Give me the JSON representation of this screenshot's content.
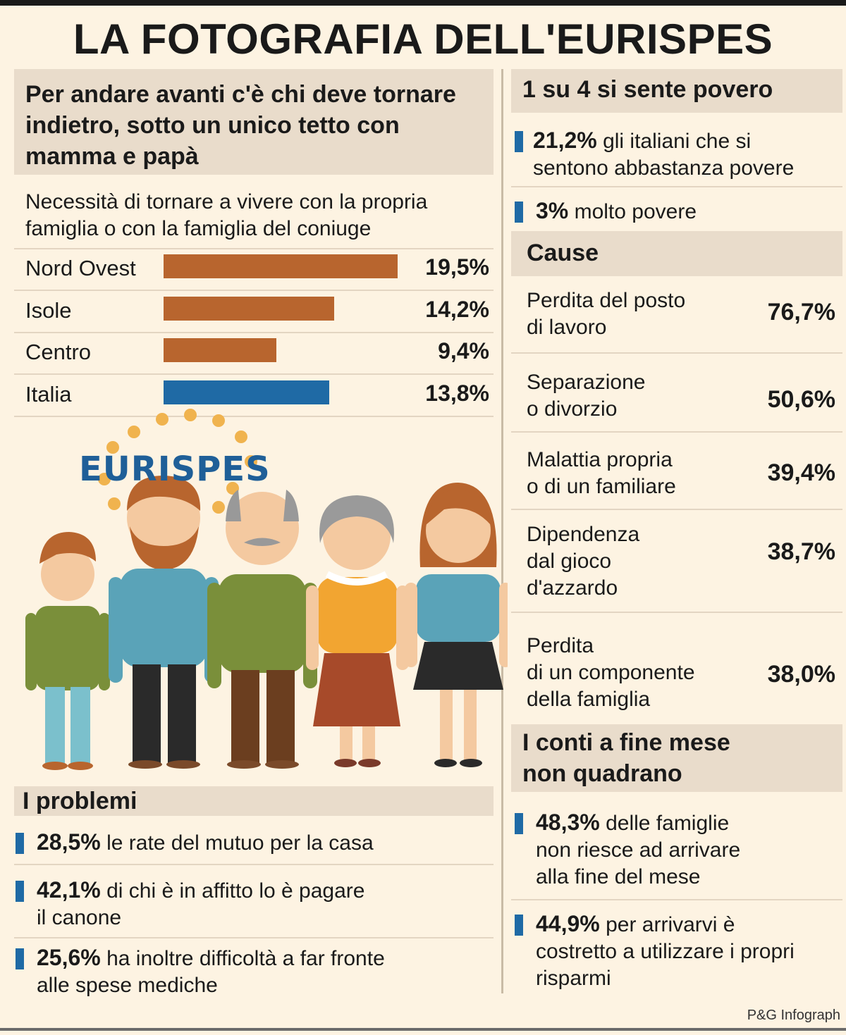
{
  "title": "LA FOTOGRAFIA DELL'EURISPES",
  "left_heading": "Per andare avanti c'è chi deve tornare indietro, sotto un unico tetto con mamma e papà",
  "chart_subtitle": "Necessità di tornare a vivere con la propria famiglia o con la famiglia del coniuge",
  "logo_text": "EURISPES",
  "chart_data": {
    "type": "bar",
    "orientation": "horizontal",
    "categories": [
      "Nord Ovest",
      "Isole",
      "Centro",
      "Italia"
    ],
    "values": [
      19.5,
      14.2,
      9.4,
      13.8
    ],
    "value_labels": [
      "19,5%",
      "14,2%",
      "9,4%",
      "13,8%"
    ],
    "colors": [
      "#b8652e",
      "#b8652e",
      "#b8652e",
      "#1f6aa5"
    ],
    "title": "Necessità di tornare a vivere con la propria famiglia o con la famiglia del coniuge",
    "xlabel": "",
    "ylabel": "",
    "grid": false
  },
  "problems": {
    "heading": "I problemi",
    "items": [
      {
        "value": "28,5%",
        "text": "le rate del mutuo per la casa"
      },
      {
        "value": "42,1%",
        "text": "di chi è in affitto lo è pagare",
        "text2": "il canone"
      },
      {
        "value": "25,6%",
        "text": "ha inoltre difficoltà a far fronte",
        "text2": "alle spese mediche"
      }
    ]
  },
  "poverty": {
    "heading": "1 su 4 si sente povero",
    "items": [
      {
        "value": "21,2%",
        "text": "gli italiani che si",
        "text2": "sentono abbastanza povere"
      },
      {
        "value": "3%",
        "text": "molto povere"
      }
    ]
  },
  "causes": {
    "heading": "Cause",
    "items": [
      {
        "lines": [
          "Perdita del posto",
          "di lavoro"
        ],
        "value": "76,7%"
      },
      {
        "lines": [
          "Separazione",
          "o divorzio"
        ],
        "value": "50,6%"
      },
      {
        "lines": [
          "Malattia propria",
          "o di un familiare"
        ],
        "value": "39,4%"
      },
      {
        "lines": [
          "Dipendenza",
          "dal gioco",
          "d'azzardo"
        ],
        "value": "38,7%"
      },
      {
        "lines": [
          "Perdita",
          "di un componente",
          "della famiglia"
        ],
        "value": "38,0%"
      }
    ]
  },
  "month_end": {
    "heading_line1": "I conti a fine mese",
    "heading_line2": "non quadrano",
    "items": [
      {
        "value": "48,3%",
        "text": "delle famiglie",
        "text2": "non riesce ad arrivare",
        "text3": "alla fine del mese"
      },
      {
        "value": "44,9%",
        "text": "per arrivarvi è",
        "text2": "costretto a utilizzare i propri",
        "text3": "risparmi"
      }
    ]
  },
  "credit": "P&G Infograph"
}
